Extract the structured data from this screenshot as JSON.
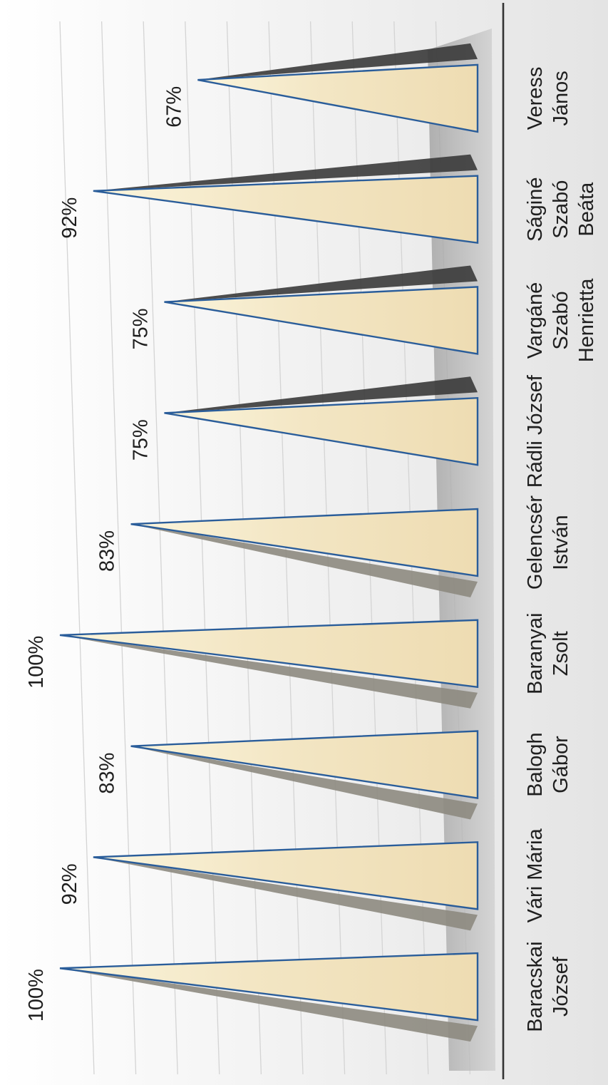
{
  "chart_data": {
    "type": "bar",
    "orientation": "rotated-90-clockwise",
    "bar_shape": "cone-3d",
    "categories": [
      [
        "Baracskai",
        "József"
      ],
      [
        "Vári Mária"
      ],
      [
        "Balogh",
        "Gábor"
      ],
      [
        "Baranyai",
        "Zsolt"
      ],
      [
        "Gelencsér",
        "István"
      ],
      [
        "Rádli József"
      ],
      [
        "Vargáné",
        "Szabó",
        "Henrietta"
      ],
      [
        "Ságiné",
        "Szabó",
        "Beáta"
      ],
      [
        "Veress",
        "János"
      ]
    ],
    "values": [
      100,
      92,
      83,
      100,
      83,
      75,
      75,
      92,
      67
    ],
    "value_labels": [
      "100%",
      "92%",
      "83%",
      "100%",
      "83%",
      "75%",
      "75%",
      "92%",
      "67%"
    ],
    "ylim": [
      0,
      100
    ],
    "grid": true,
    "colors": {
      "cone_face": "#f1e2bd",
      "cone_outline": "#2a5d9a",
      "shadow_left": "#8d8a80",
      "shadow_right": "#3a3a3a",
      "floor": "#a3a3a3",
      "gridline": "#d4d4d4",
      "background_top": "#ffffff",
      "background_bottom": "#e5e5e5",
      "axis": "#333333"
    }
  }
}
